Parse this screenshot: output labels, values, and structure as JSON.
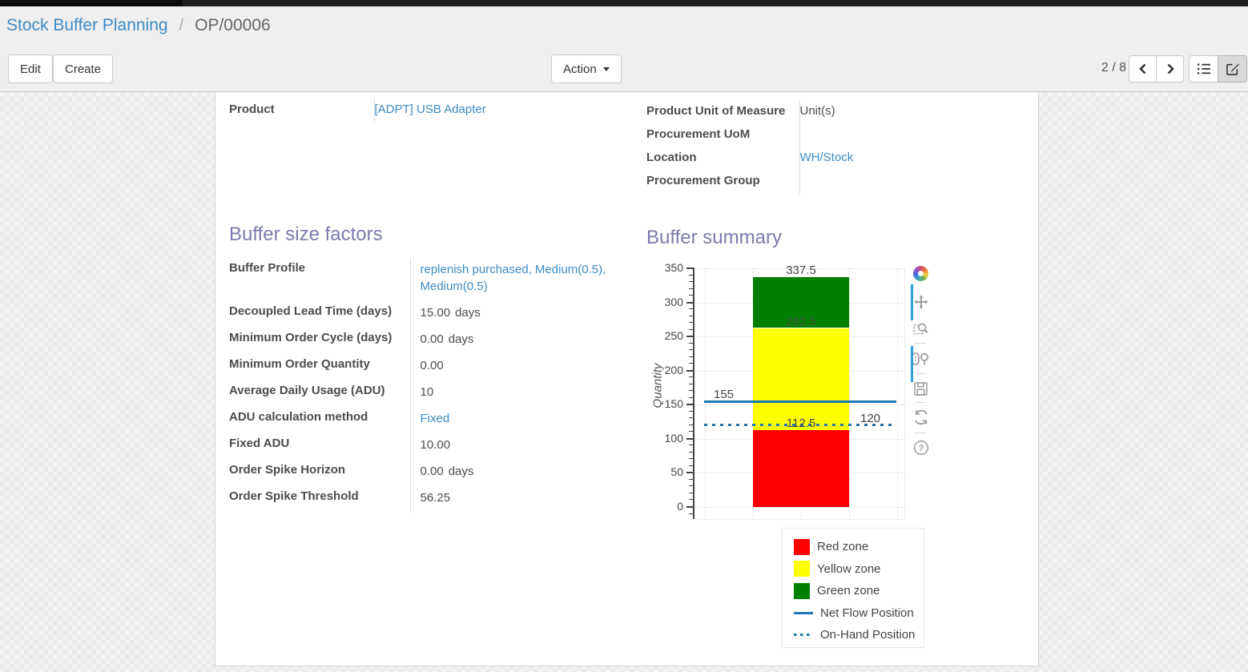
{
  "breadcrumb": {
    "parent": "Stock Buffer Planning",
    "separator": "/",
    "current": "OP/00006"
  },
  "buttons": {
    "edit": "Edit",
    "create": "Create",
    "action": "Action"
  },
  "pager": {
    "text": "2 / 8"
  },
  "icons": [
    "chevron-left-icon",
    "chevron-right-icon",
    "list-view-icon",
    "form-view-icon",
    "caret-down-icon",
    "plotly-logo-icon",
    "pan-icon",
    "zoom-box-icon",
    "toggle-spikelines-icon",
    "save-icon",
    "reset-axes-icon",
    "help-icon"
  ],
  "colors": {
    "heading": "#7c7bad",
    "link": "#3d8bc6",
    "red_zone": "#ff0000",
    "yellow_zone": "#ffff00",
    "green_zone": "#008000",
    "flow_line": "#1f77b4"
  },
  "product_info": {
    "left": [
      {
        "label": "Product",
        "value": "[ADPT] USB Adapter"
      }
    ],
    "right": [
      {
        "label": "Product Unit of Measure",
        "value": "Unit(s)"
      },
      {
        "label": "Procurement UoM",
        "value": ""
      },
      {
        "label": "Location",
        "value": "WH/Stock"
      },
      {
        "label": "Procurement Group",
        "value": ""
      }
    ]
  },
  "factors": {
    "title": "Buffer size factors",
    "rows": [
      {
        "label": "Buffer Profile",
        "value": "replenish purchased, Medium(0.5), Medium(0.5)"
      },
      {
        "label": "Decoupled Lead Time (days)",
        "value": "15.00",
        "suffix": "days"
      },
      {
        "label": "Minimum Order Cycle (days)",
        "value": "0.00",
        "suffix": "days"
      },
      {
        "label": "Minimum Order Quantity",
        "value": "0.00"
      },
      {
        "label": "Average Daily Usage (ADU)",
        "value": "10"
      },
      {
        "label": "ADU calculation method",
        "value": "Fixed"
      },
      {
        "label": "Fixed ADU",
        "value": "10.00"
      },
      {
        "label": "Order Spike Horizon",
        "value": "0.00",
        "suffix": "days"
      },
      {
        "label": "Order Spike Threshold",
        "value": "56.25"
      }
    ]
  },
  "chart_data": {
    "type": "bar",
    "title": "Buffer summary",
    "xlabel": "",
    "ylabel": "Quantity",
    "ylim": [
      0,
      350
    ],
    "yticks": [
      0,
      50,
      100,
      150,
      200,
      250,
      300,
      350
    ],
    "grid": true,
    "legend_position": "bottom-right",
    "series": [
      {
        "name": "Red zone",
        "color": "#ff0000",
        "from": 0,
        "to": 112.5
      },
      {
        "name": "Yellow zone",
        "color": "#ffff00",
        "from": 112.5,
        "to": 262.5
      },
      {
        "name": "Green zone",
        "color": "#008000",
        "from": 262.5,
        "to": 337.5
      }
    ],
    "lines": [
      {
        "name": "Net Flow Position",
        "value": 155,
        "style": "solid",
        "color": "#1f77b4"
      },
      {
        "name": "On-Hand Position",
        "value": 120,
        "style": "dotted",
        "color": "#1f77b4"
      }
    ],
    "annotations": [
      {
        "text": "337.5",
        "value": 337.5,
        "x": "bar-center",
        "color": "#444444"
      },
      {
        "text": "262.5",
        "value": 262.5,
        "x": "bar-center",
        "color": "#4a5442"
      },
      {
        "text": "155",
        "value": 155,
        "x": "left",
        "color": "#444444"
      },
      {
        "text": "112.5",
        "value": 112.5,
        "x": "bar-center",
        "color": "#444444"
      },
      {
        "text": "120",
        "value": 120,
        "x": "right",
        "color": "#444444"
      }
    ],
    "legend": [
      {
        "label": "Red zone",
        "swatch": "square",
        "color": "#ff0000"
      },
      {
        "label": "Yellow zone",
        "swatch": "square",
        "color": "#ffff00"
      },
      {
        "label": "Green zone",
        "swatch": "square",
        "color": "#008000"
      },
      {
        "label": "Net Flow Position",
        "swatch": "line",
        "color": "#1f77b4"
      },
      {
        "label": "On-Hand Position",
        "swatch": "dotted",
        "color": "#1f77b4"
      }
    ]
  }
}
